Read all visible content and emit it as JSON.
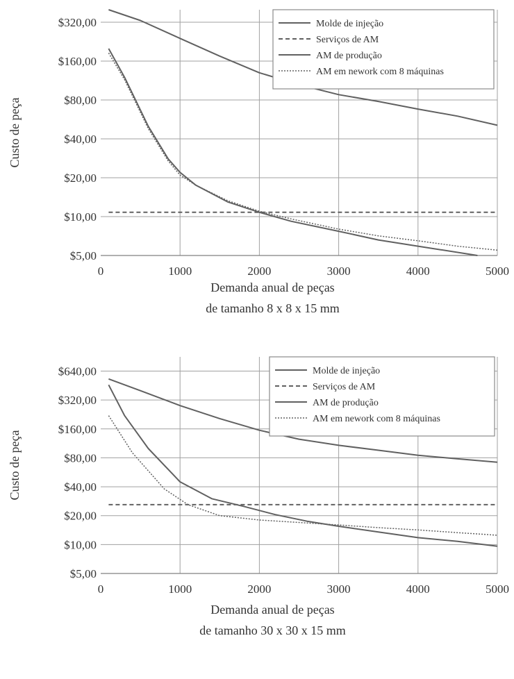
{
  "chart_data": [
    {
      "type": "line",
      "title": "",
      "xlabel": "Demanda anual de peças",
      "xlabel2": "de tamanho 8 x 8 x 15 mm",
      "ylabel": "Custo de peça",
      "yscale": "log2",
      "xlim": [
        0,
        5000
      ],
      "ylim": [
        5,
        400
      ],
      "xticks": [
        "0",
        "1000",
        "2000",
        "3000",
        "4000",
        "5000"
      ],
      "yticks": [
        "$5,00",
        "$10,00",
        "$20,00",
        "$40,00",
        "$80,00",
        "$160,00",
        "$320,00"
      ],
      "ytick_values": [
        5,
        10,
        20,
        40,
        80,
        160,
        320
      ],
      "grid": true,
      "legend_position": "top-right",
      "series": [
        {
          "name": "Molde de injeção",
          "style": "solid",
          "color": "#606060",
          "x": [
            100,
            500,
            1000,
            1500,
            2000,
            2500,
            3000,
            3500,
            4000,
            4500,
            5000
          ],
          "y": [
            400,
            330,
            240,
            175,
            130,
            105,
            88,
            78,
            68,
            60,
            51
          ]
        },
        {
          "name": "Serviços de AM",
          "style": "dashed",
          "color": "#606060",
          "x": [
            100,
            5000
          ],
          "y": [
            10.8,
            10.8
          ]
        },
        {
          "name": "AM de produção",
          "style": "solid",
          "color": "#606060",
          "x": [
            100,
            300,
            600,
            850,
            1000,
            1200,
            1600,
            2000,
            2400,
            3000,
            3500,
            4000,
            4750
          ],
          "y": [
            200,
            120,
            50,
            28,
            22,
            17.5,
            13,
            10.8,
            9.2,
            7.7,
            6.6,
            5.9,
            5.0
          ]
        },
        {
          "name": "AM em nework com 8 máquinas",
          "style": "dotted",
          "color": "#606060",
          "x": [
            100,
            300,
            600,
            850,
            1000,
            1200,
            1600,
            2000,
            2400,
            3000,
            3500,
            4000,
            4500,
            5000
          ],
          "y": [
            185,
            115,
            48,
            27,
            21,
            17.5,
            13.3,
            11.0,
            9.6,
            8.0,
            7.1,
            6.5,
            5.9,
            5.5
          ]
        }
      ]
    },
    {
      "type": "line",
      "title": "",
      "xlabel": "Demanda anual de peças",
      "xlabel2": "de tamanho 30 x 30 x 15 mm",
      "ylabel": "Custo de peça",
      "yscale": "log2",
      "xlim": [
        0,
        5000
      ],
      "ylim": [
        5,
        900
      ],
      "xticks": [
        "0",
        "1000",
        "2000",
        "3000",
        "4000",
        "5000"
      ],
      "yticks": [
        "$5,00",
        "$10,00",
        "$20,00",
        "$40,00",
        "$80,00",
        "$160,00",
        "$320,00",
        "$640,00"
      ],
      "ytick_values": [
        5,
        10,
        20,
        40,
        80,
        160,
        320,
        640
      ],
      "grid": true,
      "legend_position": "top-right",
      "series": [
        {
          "name": "Molde de injeção",
          "style": "solid",
          "color": "#606060",
          "x": [
            100,
            500,
            1000,
            1500,
            2000,
            2500,
            3000,
            3500,
            4000,
            4500,
            5000
          ],
          "y": [
            530,
            400,
            280,
            205,
            155,
            125,
            108,
            96,
            85,
            78,
            72
          ]
        },
        {
          "name": "Serviços de AM",
          "style": "dashed",
          "color": "#606060",
          "x": [
            100,
            5000
          ],
          "y": [
            26,
            26
          ]
        },
        {
          "name": "AM de produção",
          "style": "solid",
          "color": "#606060",
          "x": [
            100,
            300,
            600,
            1000,
            1400,
            1800,
            2200,
            2600,
            3000,
            3500,
            4000,
            4500,
            5000
          ],
          "y": [
            460,
            220,
            100,
            45,
            30,
            25,
            20.5,
            17.5,
            15.5,
            13.5,
            11.8,
            10.8,
            9.6
          ]
        },
        {
          "name": "AM em nework com 8 máquinas",
          "style": "dotted",
          "color": "#606060",
          "x": [
            100,
            400,
            800,
            1100,
            1500,
            2000,
            2500,
            3000,
            3500,
            4000,
            4500,
            5000
          ],
          "y": [
            220,
            90,
            38,
            26,
            20,
            18,
            17,
            16,
            15,
            14.2,
            13.3,
            12.5
          ]
        }
      ]
    }
  ]
}
